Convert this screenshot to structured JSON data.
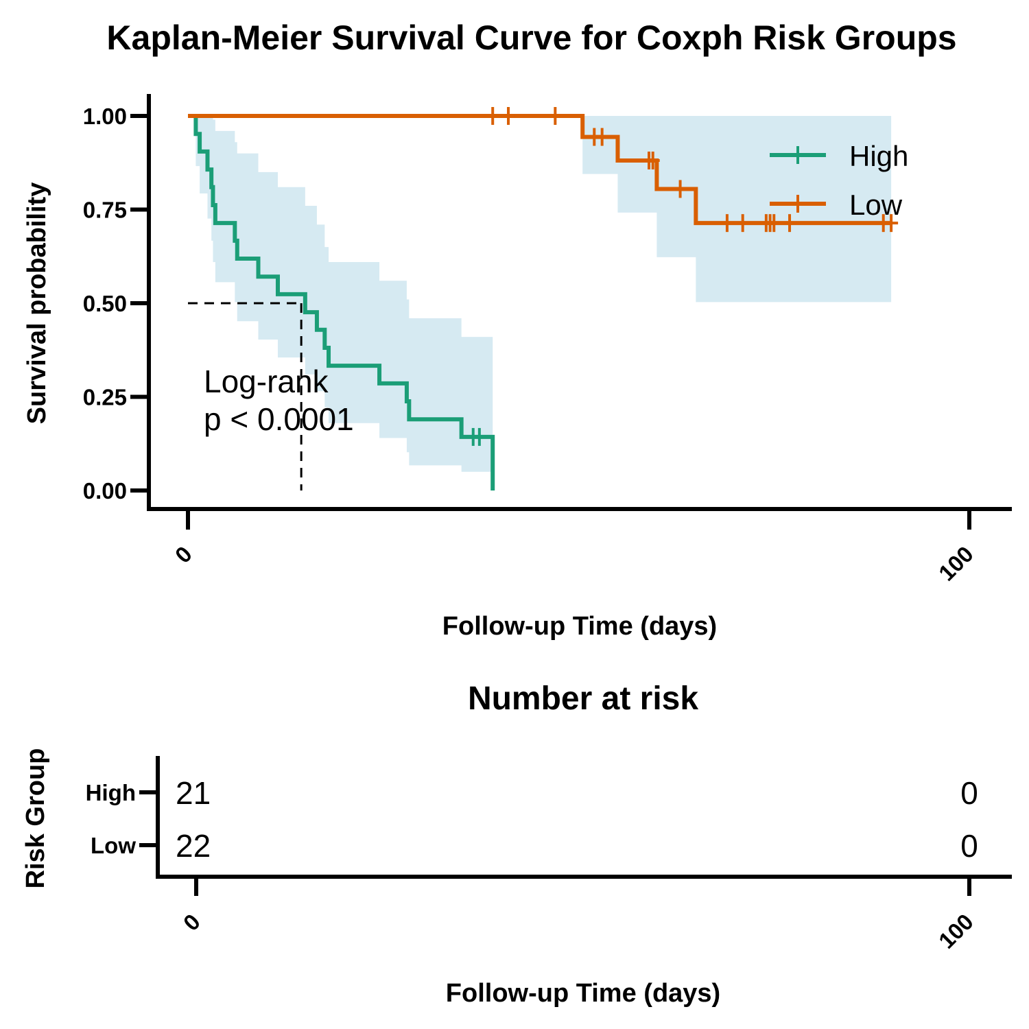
{
  "chart_data": [
    {
      "type": "line",
      "subtype": "kaplan-meier",
      "title": "Kaplan-Meier Survival Curve for Coxph Risk Groups",
      "xlabel": "Follow-up Time (days)",
      "ylabel": "Survival probability",
      "xlim": [
        -5,
        105
      ],
      "ylim": [
        0,
        1
      ],
      "xticks": [
        0,
        100
      ],
      "yticks": [
        0,
        0.25,
        0.5,
        0.75,
        1.0
      ],
      "ytick_labels": [
        "0.00",
        "0.25",
        "0.50",
        "0.75",
        "1.00"
      ],
      "legend": {
        "position": "top-right",
        "entries": [
          "High",
          "Low"
        ]
      },
      "annotation": {
        "line1": "Log-rank",
        "line2": "p < 0.0001"
      },
      "median_line": {
        "x": 14.5,
        "y": 0.5
      },
      "colors": {
        "High": "#1b9e77",
        "Low": "#d95f02",
        "ci": "#d6eaf2"
      },
      "series": [
        {
          "name": "High",
          "steps": [
            [
              0,
              1.0
            ],
            [
              1,
              0.952
            ],
            [
              1.5,
              0.905
            ],
            [
              2.5,
              0.857
            ],
            [
              3,
              0.81
            ],
            [
              3.2,
              0.762
            ],
            [
              3.5,
              0.714
            ],
            [
              6,
              0.667
            ],
            [
              6.3,
              0.619
            ],
            [
              9,
              0.571
            ],
            [
              11.5,
              0.524
            ],
            [
              15,
              0.476
            ],
            [
              16.5,
              0.429
            ],
            [
              17.5,
              0.381
            ],
            [
              18,
              0.333
            ],
            [
              24.5,
              0.286
            ],
            [
              28,
              0.238
            ],
            [
              28.3,
              0.19
            ],
            [
              35,
              0.143
            ],
            [
              39,
              0.0
            ]
          ],
          "ci_lower": [
            1.0,
            0.866,
            0.793,
            0.726,
            0.667,
            0.61,
            0.556,
            0.503,
            0.452,
            0.403,
            0.355,
            0.31,
            0.265,
            0.222,
            0.18,
            0.14,
            0.102,
            0.067,
            0.05,
            0.0
          ],
          "ci_upper": [
            1.0,
            1.0,
            1.0,
            1.0,
            1.0,
            0.99,
            0.96,
            0.93,
            0.9,
            0.85,
            0.81,
            0.76,
            0.71,
            0.65,
            0.61,
            0.56,
            0.51,
            0.46,
            0.41,
            0.0
          ],
          "censor_times": [
            36.5,
            37.3
          ],
          "censor_values": [
            0.143,
            0.143
          ]
        },
        {
          "name": "Low",
          "steps": [
            [
              0,
              1.0
            ],
            [
              50.5,
              0.944
            ],
            [
              55,
              0.881
            ],
            [
              60,
              0.805
            ],
            [
              65,
              0.714
            ],
            [
              90,
              0.714
            ]
          ],
          "ci_lower": [
            1.0,
            0.845,
            0.742,
            0.623,
            0.503,
            0.503
          ],
          "ci_upper": [
            1.0,
            1.0,
            1.0,
            1.0,
            1.0,
            1.0
          ],
          "censor_times": [
            39,
            41,
            47,
            52,
            53,
            59,
            59.5,
            63,
            69,
            71,
            74,
            74.5,
            75,
            77,
            89,
            90
          ],
          "censor_values": [
            1.0,
            1.0,
            1.0,
            0.944,
            0.944,
            0.881,
            0.881,
            0.805,
            0.714,
            0.714,
            0.714,
            0.714,
            0.714,
            0.714,
            0.714,
            0.714
          ]
        }
      ]
    },
    {
      "type": "table",
      "title": "Number at risk",
      "xlabel": "Follow-up Time (days)",
      "ylabel": "Risk Group",
      "xticks": [
        0,
        100
      ],
      "rows": [
        {
          "group": "High",
          "counts": [
            21,
            0
          ]
        },
        {
          "group": "Low",
          "counts": [
            22,
            0
          ]
        }
      ]
    }
  ]
}
